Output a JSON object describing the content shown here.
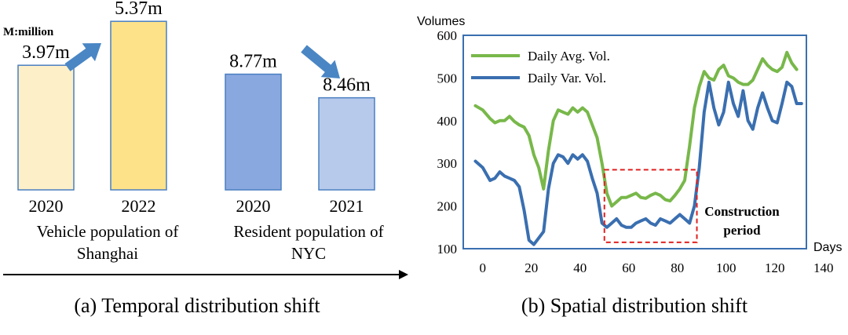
{
  "chart_data": [
    {
      "type": "bar",
      "panel": "a",
      "unit_note": "M:million",
      "caption": "(a) Temporal distribution shift",
      "groups": [
        {
          "name": "Vehicle population of Shanghai",
          "label_line1": "Vehicle population of",
          "label_line2": "Shanghai",
          "trend": "increase",
          "bars": [
            {
              "category": "2020",
              "value": 3.97,
              "value_label": "3.97m",
              "color": "#fdf0c8"
            },
            {
              "category": "2022",
              "value": 5.37,
              "value_label": "5.37m",
              "color": "#fde28a"
            }
          ]
        },
        {
          "name": "Resident population of NYC",
          "label_line1": "Resident population of",
          "label_line2": "NYC",
          "trend": "decrease",
          "bars": [
            {
              "category": "2020",
              "value": 8.77,
              "value_label": "8.77m",
              "color": "#8aa8e0"
            },
            {
              "category": "2021",
              "value": 8.46,
              "value_label": "8.46m",
              "color": "#b7caec"
            }
          ]
        }
      ],
      "colors": {
        "arrow": "#4a86c4",
        "bar_border": "#4a7fc0",
        "axis": "#000000"
      }
    },
    {
      "type": "line",
      "panel": "b",
      "caption": "(b) Spatial distribution shift",
      "ylabel": "Volumes",
      "xlabel": "Days",
      "xlim": [
        -8,
        133
      ],
      "ylim": [
        100,
        600
      ],
      "xticks": [
        0,
        20,
        40,
        60,
        80,
        100,
        120,
        140
      ],
      "yticks": [
        100,
        200,
        300,
        400,
        500,
        600
      ],
      "legend_position": "top-left",
      "annotation": {
        "line1": "Construction",
        "line2": "period",
        "x_range": [
          50,
          88
        ],
        "y_range": [
          115,
          285
        ],
        "color": "#e02020"
      },
      "colors": {
        "frame": "#3a6fb0"
      },
      "series": [
        {
          "name": "Daily Avg. Vol.",
          "color": "#78b84a",
          "x": [
            -3,
            0,
            3,
            5,
            7,
            9,
            11,
            13,
            15,
            17,
            19,
            21,
            23,
            25,
            27,
            29,
            31,
            33,
            35,
            37,
            39,
            41,
            43,
            45,
            47,
            49,
            51,
            53,
            55,
            57,
            59,
            61,
            63,
            65,
            67,
            69,
            71,
            73,
            75,
            77,
            79,
            81,
            83,
            85,
            87,
            89,
            91,
            93,
            95,
            97,
            99,
            101,
            103,
            105,
            107,
            109,
            111,
            113,
            115,
            117,
            119,
            121,
            123,
            125,
            127,
            129
          ],
          "y": [
            435,
            425,
            405,
            395,
            400,
            400,
            410,
            398,
            390,
            385,
            365,
            320,
            290,
            240,
            330,
            400,
            425,
            420,
            415,
            430,
            420,
            430,
            420,
            390,
            360,
            300,
            230,
            200,
            210,
            220,
            220,
            225,
            230,
            220,
            218,
            225,
            230,
            225,
            215,
            212,
            225,
            240,
            260,
            340,
            430,
            480,
            515,
            500,
            495,
            520,
            530,
            505,
            500,
            490,
            485,
            485,
            495,
            520,
            545,
            530,
            520,
            515,
            525,
            560,
            535,
            520
          ]
        },
        {
          "name": "Daily Var. Vol.",
          "color": "#3a6fb0",
          "x": [
            -3,
            0,
            3,
            5,
            7,
            9,
            11,
            13,
            15,
            17,
            19,
            21,
            23,
            25,
            27,
            29,
            31,
            33,
            35,
            37,
            39,
            41,
            43,
            45,
            47,
            49,
            51,
            53,
            55,
            57,
            59,
            61,
            63,
            65,
            67,
            69,
            71,
            73,
            75,
            77,
            79,
            81,
            83,
            85,
            87,
            89,
            91,
            93,
            95,
            97,
            99,
            101,
            103,
            105,
            107,
            109,
            111,
            113,
            115,
            117,
            119,
            121,
            123,
            125,
            127,
            129,
            131
          ],
          "y": [
            305,
            290,
            260,
            265,
            280,
            270,
            265,
            260,
            245,
            190,
            120,
            110,
            125,
            140,
            240,
            300,
            320,
            315,
            300,
            320,
            310,
            320,
            305,
            265,
            230,
            160,
            150,
            160,
            170,
            155,
            150,
            150,
            160,
            165,
            170,
            160,
            155,
            170,
            165,
            160,
            170,
            180,
            170,
            160,
            200,
            290,
            420,
            490,
            430,
            390,
            420,
            490,
            440,
            410,
            470,
            400,
            380,
            430,
            465,
            430,
            400,
            395,
            440,
            490,
            480,
            440,
            440
          ]
        }
      ]
    }
  ]
}
